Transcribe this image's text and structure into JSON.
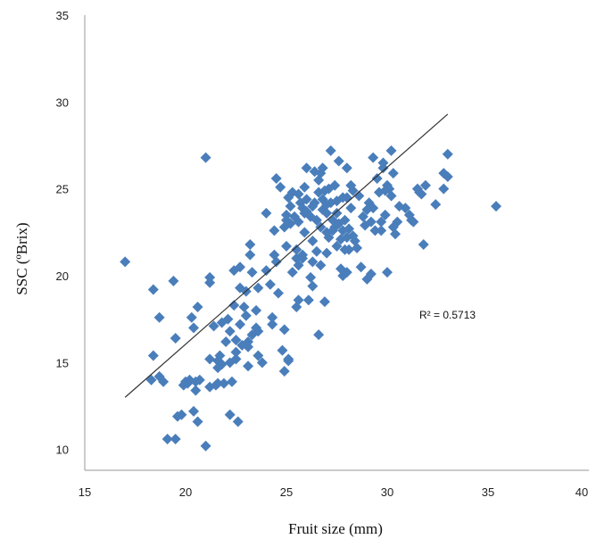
{
  "chart_data": {
    "type": "scatter",
    "title": "",
    "xlabel": "Fruit size (mm)",
    "ylabel": "SSC (ºBrix)",
    "xlim": [
      15,
      40
    ],
    "ylim": [
      8.8,
      35
    ],
    "xticks": [
      15,
      20,
      25,
      30,
      35,
      40
    ],
    "yticks": [
      10,
      15,
      20,
      25,
      30,
      35
    ],
    "grid": false,
    "legend": "none",
    "marker": "diamond",
    "marker_color": "#4a7ebb",
    "trendline": {
      "x": [
        17.0,
        33.0
      ],
      "y": [
        13.0,
        29.3
      ],
      "color": "#333333"
    },
    "annotation": "R² = 0.5713",
    "points": [
      [
        17.0,
        20.8
      ],
      [
        18.3,
        14.0
      ],
      [
        18.4,
        19.2
      ],
      [
        18.4,
        15.4
      ],
      [
        18.7,
        17.6
      ],
      [
        18.7,
        14.2
      ],
      [
        18.9,
        13.9
      ],
      [
        19.1,
        10.6
      ],
      [
        19.4,
        19.7
      ],
      [
        19.5,
        10.6
      ],
      [
        19.5,
        16.4
      ],
      [
        19.6,
        11.9
      ],
      [
        19.8,
        12.0
      ],
      [
        19.9,
        13.7
      ],
      [
        20.0,
        13.9
      ],
      [
        20.1,
        13.8
      ],
      [
        20.2,
        14.0
      ],
      [
        20.3,
        17.6
      ],
      [
        20.4,
        12.2
      ],
      [
        20.4,
        17.0
      ],
      [
        20.5,
        13.9
      ],
      [
        20.5,
        13.4
      ],
      [
        20.6,
        11.6
      ],
      [
        20.6,
        18.2
      ],
      [
        20.7,
        14.0
      ],
      [
        21.0,
        10.2
      ],
      [
        21.0,
        26.8
      ],
      [
        21.2,
        19.9
      ],
      [
        21.2,
        19.6
      ],
      [
        21.2,
        15.2
      ],
      [
        21.2,
        13.6
      ],
      [
        21.4,
        17.1
      ],
      [
        21.5,
        13.7
      ],
      [
        21.6,
        15.1
      ],
      [
        21.6,
        14.7
      ],
      [
        21.6,
        13.8
      ],
      [
        21.7,
        15.4
      ],
      [
        21.8,
        17.3
      ],
      [
        21.8,
        14.9
      ],
      [
        21.9,
        13.8
      ],
      [
        22.0,
        16.2
      ],
      [
        22.1,
        17.5
      ],
      [
        22.2,
        16.8
      ],
      [
        22.2,
        15.0
      ],
      [
        22.2,
        12.0
      ],
      [
        22.3,
        13.9
      ],
      [
        22.4,
        20.3
      ],
      [
        22.4,
        18.3
      ],
      [
        22.5,
        16.3
      ],
      [
        22.5,
        15.6
      ],
      [
        22.5,
        15.2
      ],
      [
        22.6,
        11.6
      ],
      [
        22.7,
        20.5
      ],
      [
        22.7,
        19.3
      ],
      [
        22.7,
        17.2
      ],
      [
        22.8,
        16.0
      ],
      [
        22.9,
        18.2
      ],
      [
        23.0,
        19.1
      ],
      [
        23.0,
        17.7
      ],
      [
        23.1,
        16.2
      ],
      [
        23.1,
        15.9
      ],
      [
        23.1,
        14.8
      ],
      [
        23.2,
        21.8
      ],
      [
        23.2,
        21.2
      ],
      [
        23.3,
        20.2
      ],
      [
        23.3,
        16.6
      ],
      [
        23.5,
        18.0
      ],
      [
        23.5,
        17.0
      ],
      [
        23.6,
        19.3
      ],
      [
        23.6,
        16.8
      ],
      [
        23.6,
        15.4
      ],
      [
        23.8,
        15.0
      ],
      [
        24.0,
        23.6
      ],
      [
        24.0,
        20.3
      ],
      [
        24.2,
        19.5
      ],
      [
        24.3,
        17.6
      ],
      [
        24.3,
        17.2
      ],
      [
        24.4,
        22.6
      ],
      [
        24.4,
        21.2
      ],
      [
        24.5,
        25.6
      ],
      [
        24.5,
        20.8
      ],
      [
        24.6,
        19.0
      ],
      [
        24.7,
        25.1
      ],
      [
        24.8,
        15.7
      ],
      [
        24.9,
        22.8
      ],
      [
        24.9,
        16.9
      ],
      [
        24.9,
        14.5
      ],
      [
        25.0,
        23.5
      ],
      [
        25.0,
        23.2
      ],
      [
        25.0,
        21.7
      ],
      [
        25.1,
        24.5
      ],
      [
        25.1,
        15.2
      ],
      [
        25.1,
        15.1
      ],
      [
        25.2,
        24.0
      ],
      [
        25.2,
        23.0
      ],
      [
        25.3,
        24.8
      ],
      [
        25.3,
        20.2
      ],
      [
        25.4,
        23.4
      ],
      [
        25.5,
        21.5
      ],
      [
        25.5,
        21.0
      ],
      [
        25.5,
        18.2
      ],
      [
        25.6,
        24.7
      ],
      [
        25.6,
        23.1
      ],
      [
        25.6,
        20.6
      ],
      [
        25.6,
        18.6
      ],
      [
        25.7,
        24.2
      ],
      [
        25.8,
        23.9
      ],
      [
        25.8,
        21.2
      ],
      [
        25.8,
        21.0
      ],
      [
        25.9,
        25.1
      ],
      [
        25.9,
        23.6
      ],
      [
        25.9,
        22.5
      ],
      [
        26.0,
        26.2
      ],
      [
        26.0,
        24.4
      ],
      [
        26.0,
        23.7
      ],
      [
        26.1,
        18.6
      ],
      [
        26.2,
        23.4
      ],
      [
        26.2,
        19.9
      ],
      [
        26.3,
        24.0
      ],
      [
        26.3,
        22.0
      ],
      [
        26.3,
        20.8
      ],
      [
        26.3,
        19.4
      ],
      [
        26.4,
        26.0
      ],
      [
        26.4,
        24.2
      ],
      [
        26.5,
        23.2
      ],
      [
        26.5,
        21.4
      ],
      [
        26.6,
        25.5
      ],
      [
        26.6,
        24.8
      ],
      [
        26.6,
        16.6
      ],
      [
        26.7,
        25.9
      ],
      [
        26.7,
        22.8
      ],
      [
        26.7,
        20.6
      ],
      [
        26.8,
        26.2
      ],
      [
        26.8,
        24.4
      ],
      [
        26.8,
        23.8
      ],
      [
        26.9,
        24.9
      ],
      [
        26.9,
        18.5
      ],
      [
        27.0,
        24.1
      ],
      [
        27.0,
        23.6
      ],
      [
        27.0,
        22.5
      ],
      [
        27.0,
        21.3
      ],
      [
        27.1,
        25.0
      ],
      [
        27.1,
        22.2
      ],
      [
        27.2,
        27.2
      ],
      [
        27.2,
        24.2
      ],
      [
        27.3,
        23.2
      ],
      [
        27.3,
        22.6
      ],
      [
        27.4,
        25.2
      ],
      [
        27.4,
        22.8
      ],
      [
        27.5,
        24.3
      ],
      [
        27.5,
        23.6
      ],
      [
        27.5,
        21.7
      ],
      [
        27.6,
        26.6
      ],
      [
        27.6,
        23.0
      ],
      [
        27.7,
        22.1
      ],
      [
        27.7,
        20.4
      ],
      [
        27.8,
        24.5
      ],
      [
        27.8,
        22.6
      ],
      [
        27.8,
        20.0
      ],
      [
        27.9,
        23.2
      ],
      [
        27.9,
        21.5
      ],
      [
        28.0,
        26.2
      ],
      [
        28.0,
        24.5
      ],
      [
        28.0,
        22.2
      ],
      [
        28.0,
        20.2
      ],
      [
        28.1,
        22.7
      ],
      [
        28.1,
        21.5
      ],
      [
        28.2,
        25.2
      ],
      [
        28.2,
        23.9
      ],
      [
        28.3,
        24.9
      ],
      [
        28.3,
        22.3
      ],
      [
        28.4,
        22.0
      ],
      [
        28.5,
        21.6
      ],
      [
        28.6,
        24.6
      ],
      [
        28.7,
        20.5
      ],
      [
        28.8,
        23.4
      ],
      [
        28.9,
        22.9
      ],
      [
        29.0,
        23.8
      ],
      [
        29.0,
        19.8
      ],
      [
        29.1,
        24.2
      ],
      [
        29.2,
        23.1
      ],
      [
        29.2,
        20.1
      ],
      [
        29.3,
        26.8
      ],
      [
        29.3,
        23.9
      ],
      [
        29.4,
        22.6
      ],
      [
        29.5,
        25.6
      ],
      [
        29.6,
        24.8
      ],
      [
        29.7,
        23.1
      ],
      [
        29.7,
        22.6
      ],
      [
        29.8,
        26.5
      ],
      [
        29.8,
        26.2
      ],
      [
        29.9,
        24.9
      ],
      [
        29.9,
        23.5
      ],
      [
        30.0,
        25.2
      ],
      [
        30.0,
        20.2
      ],
      [
        30.1,
        25.0
      ],
      [
        30.2,
        27.2
      ],
      [
        30.2,
        24.6
      ],
      [
        30.3,
        25.9
      ],
      [
        30.3,
        22.8
      ],
      [
        30.4,
        22.4
      ],
      [
        30.5,
        23.1
      ],
      [
        30.6,
        24.0
      ],
      [
        30.9,
        23.9
      ],
      [
        31.1,
        23.5
      ],
      [
        31.2,
        23.2
      ],
      [
        31.3,
        23.1
      ],
      [
        31.5,
        25.0
      ],
      [
        31.6,
        24.8
      ],
      [
        31.7,
        24.7
      ],
      [
        31.8,
        21.8
      ],
      [
        31.9,
        25.2
      ],
      [
        32.4,
        24.1
      ],
      [
        32.8,
        25.0
      ],
      [
        32.8,
        25.9
      ],
      [
        33.0,
        25.7
      ],
      [
        33.0,
        27.0
      ],
      [
        35.4,
        24.0
      ]
    ]
  }
}
